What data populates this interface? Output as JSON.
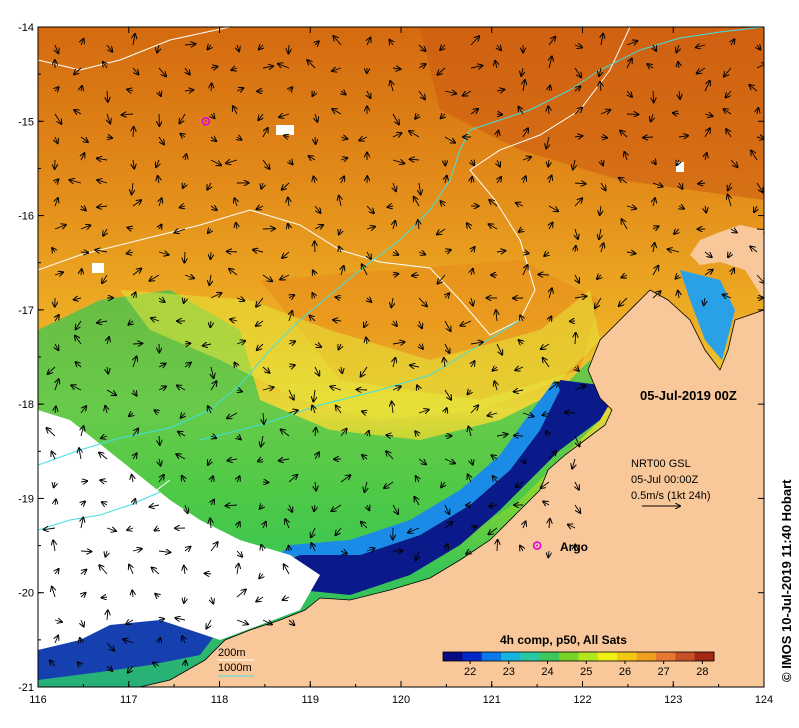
{
  "map": {
    "axes": {
      "x_ticks": [
        "116",
        "117",
        "118",
        "119",
        "120",
        "121",
        "122",
        "123",
        "124"
      ],
      "y_ticks": [
        "-14",
        "-15",
        "-16",
        "-17",
        "-18",
        "-19",
        "-20",
        "-21"
      ],
      "x_range": [
        116,
        124
      ],
      "y_range": [
        -21,
        -14
      ]
    },
    "date_label": "05-Jul-2019 00Z",
    "current_info": {
      "line1": "NRT00 GSL",
      "line2": "05-Jul 00:00Z",
      "line3": "0.5m/s (1kt 24h)"
    },
    "argo": {
      "label": "Argo",
      "markers": [
        [
          117.85,
          -15.0
        ],
        [
          121.5,
          -19.5
        ]
      ]
    },
    "legend": {
      "title": "4h comp, p50, All Sats",
      "ticks": [
        "22",
        "23",
        "24",
        "25",
        "26",
        "27",
        "28"
      ],
      "range": [
        21.3,
        28.3
      ],
      "colors": [
        "#0a0a82",
        "#0028c8",
        "#0a78e6",
        "#14b4dc",
        "#28c8a0",
        "#3cc85a",
        "#78d228",
        "#b4e61e",
        "#f0f014",
        "#f5c814",
        "#f0a01e",
        "#e67832",
        "#c85028",
        "#a02814"
      ]
    },
    "isobaths": {
      "label_200": "200m",
      "label_1000": "1000m"
    },
    "credit": "© IMOS 10-Jul-2019 11:40 Hobart",
    "colors": {
      "land": "#f8c79a",
      "cloud": "#ffffff",
      "isobath_200": "#ffffff",
      "isobath_1000": "#40e0e0",
      "argo": "#e000e0",
      "warm_water": "#e08a18",
      "cool_water": "#50d050",
      "cold_water": "#0a0a7a"
    }
  }
}
